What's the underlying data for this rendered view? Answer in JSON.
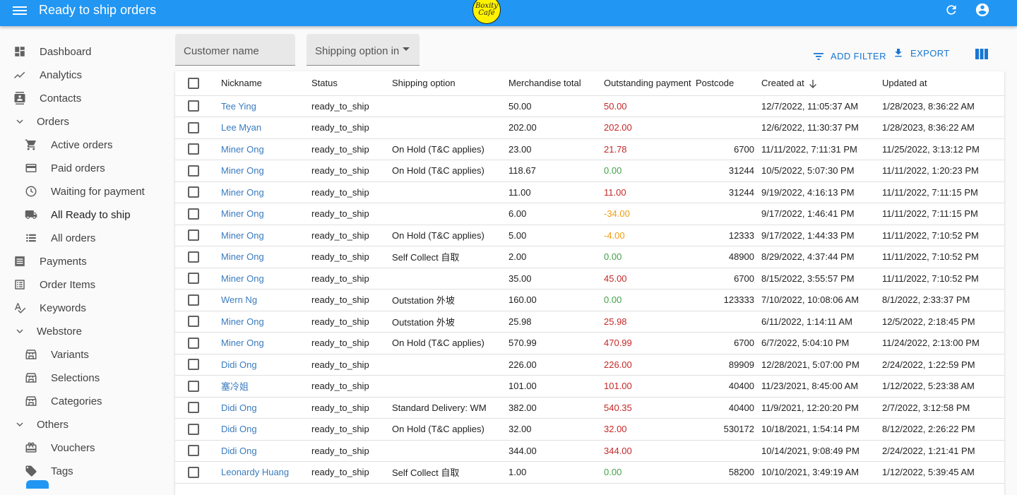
{
  "appbar": {
    "title": "Ready to ship orders",
    "logo_line1": "Boxity",
    "logo_line2": "Café"
  },
  "sidebar": {
    "items": [
      {
        "label": "Dashboard",
        "icon": "dashboard-icon"
      },
      {
        "label": "Analytics",
        "icon": "analytics-icon"
      },
      {
        "label": "Contacts",
        "icon": "contacts-icon"
      },
      {
        "label": "Orders",
        "icon": "chevron-down-icon"
      },
      {
        "label": "Active orders",
        "icon": "cart-icon"
      },
      {
        "label": "Paid orders",
        "icon": "credit-card-icon"
      },
      {
        "label": "Waiting for payment",
        "icon": "clock-icon"
      },
      {
        "label": "All Ready to ship",
        "icon": "truck-icon"
      },
      {
        "label": "All orders",
        "icon": "list-icon"
      },
      {
        "label": "Payments",
        "icon": "receipt-icon"
      },
      {
        "label": "Order Items",
        "icon": "list-alt-icon"
      },
      {
        "label": "Keywords",
        "icon": "spellcheck-icon"
      },
      {
        "label": "Webstore",
        "icon": "chevron-down-icon"
      },
      {
        "label": "Variants",
        "icon": "store-icon"
      },
      {
        "label": "Selections",
        "icon": "store-icon"
      },
      {
        "label": "Categories",
        "icon": "store-icon"
      },
      {
        "label": "Others",
        "icon": "chevron-down-icon"
      },
      {
        "label": "Vouchers",
        "icon": "gift-card-icon"
      },
      {
        "label": "Tags",
        "icon": "tag-icon"
      }
    ]
  },
  "filters": {
    "customer_name": "Customer name",
    "shipping_option": "Shipping option in"
  },
  "toolbar": {
    "add_filter": "ADD FILTER",
    "export": "EXPORT"
  },
  "table": {
    "columns": [
      "Nickname",
      "Status",
      "Shipping option",
      "Merchandise total",
      "Outstanding payment",
      "Postcode",
      "Created at",
      "Updated at"
    ],
    "rows": [
      {
        "nickname": "Tee Ying",
        "status": "ready_to_ship",
        "shipping": "",
        "total": "50.00",
        "outstanding": "50.00",
        "outstanding_color": "red",
        "postcode": "",
        "created": "12/7/2022, 11:05:37 AM",
        "updated": "1/28/2023, 8:36:22 AM"
      },
      {
        "nickname": "Lee Myan",
        "status": "ready_to_ship",
        "shipping": "",
        "total": "202.00",
        "outstanding": "202.00",
        "outstanding_color": "red",
        "postcode": "",
        "created": "12/6/2022, 11:30:37 PM",
        "updated": "1/28/2023, 8:36:22 AM"
      },
      {
        "nickname": "Miner Ong",
        "status": "ready_to_ship",
        "shipping": "On Hold (T&C applies)",
        "total": "23.00",
        "outstanding": "21.78",
        "outstanding_color": "red",
        "postcode": "6700",
        "created": "11/11/2022, 7:11:31 PM",
        "updated": "11/25/2022, 3:13:12 PM"
      },
      {
        "nickname": "Miner Ong",
        "status": "ready_to_ship",
        "shipping": "On Hold (T&C applies)",
        "total": "118.67",
        "outstanding": "0.00",
        "outstanding_color": "green",
        "postcode": "31244",
        "created": "10/5/2022, 5:07:30 PM",
        "updated": "11/11/2022, 1:20:23 PM"
      },
      {
        "nickname": "Miner Ong",
        "status": "ready_to_ship",
        "shipping": "",
        "total": "11.00",
        "outstanding": "11.00",
        "outstanding_color": "red",
        "postcode": "31244",
        "created": "9/19/2022, 4:16:13 PM",
        "updated": "11/11/2022, 7:11:15 PM"
      },
      {
        "nickname": "Miner Ong",
        "status": "ready_to_ship",
        "shipping": "",
        "total": "6.00",
        "outstanding": "-34.00",
        "outstanding_color": "orange",
        "postcode": "",
        "created": "9/17/2022, 1:46:41 PM",
        "updated": "11/11/2022, 7:11:15 PM"
      },
      {
        "nickname": "Miner Ong",
        "status": "ready_to_ship",
        "shipping": "On Hold (T&C applies)",
        "total": "5.00",
        "outstanding": "-4.00",
        "outstanding_color": "orange",
        "postcode": "12333",
        "created": "9/17/2022, 1:44:33 PM",
        "updated": "11/11/2022, 7:10:52 PM"
      },
      {
        "nickname": "Miner Ong",
        "status": "ready_to_ship",
        "shipping": "Self Collect 自取",
        "total": "2.00",
        "outstanding": "0.00",
        "outstanding_color": "green",
        "postcode": "48900",
        "created": "8/29/2022, 4:37:44 PM",
        "updated": "11/11/2022, 7:10:52 PM"
      },
      {
        "nickname": "Miner Ong",
        "status": "ready_to_ship",
        "shipping": "",
        "total": "35.00",
        "outstanding": "45.00",
        "outstanding_color": "red",
        "postcode": "6700",
        "created": "8/15/2022, 3:55:57 PM",
        "updated": "11/11/2022, 7:10:52 PM"
      },
      {
        "nickname": "Wern Ng",
        "status": "ready_to_ship",
        "shipping": "Outstation 外坡",
        "total": "160.00",
        "outstanding": "0.00",
        "outstanding_color": "green",
        "postcode": "123333",
        "created": "7/10/2022, 10:08:06 AM",
        "updated": "8/1/2022, 2:33:37 PM"
      },
      {
        "nickname": "Miner Ong",
        "status": "ready_to_ship",
        "shipping": "Outstation 外坡",
        "total": "25.98",
        "outstanding": "25.98",
        "outstanding_color": "red",
        "postcode": "",
        "created": "6/11/2022, 1:14:11 AM",
        "updated": "12/5/2022, 2:18:45 PM"
      },
      {
        "nickname": "Miner Ong",
        "status": "ready_to_ship",
        "shipping": "On Hold (T&C applies)",
        "total": "570.99",
        "outstanding": "470.99",
        "outstanding_color": "red",
        "postcode": "6700",
        "created": "6/7/2022, 5:04:10 PM",
        "updated": "11/24/2022, 2:13:00 PM"
      },
      {
        "nickname": "Didi Ong",
        "status": "ready_to_ship",
        "shipping": "",
        "total": "226.00",
        "outstanding": "226.00",
        "outstanding_color": "red",
        "postcode": "89909",
        "created": "12/28/2021, 5:07:00 PM",
        "updated": "2/24/2022, 1:22:59 PM"
      },
      {
        "nickname": "塞冷姐",
        "status": "ready_to_ship",
        "shipping": "",
        "total": "101.00",
        "outstanding": "101.00",
        "outstanding_color": "red",
        "postcode": "40400",
        "created": "11/23/2021, 8:45:00 AM",
        "updated": "1/12/2022, 5:23:38 AM"
      },
      {
        "nickname": "Didi Ong",
        "status": "ready_to_ship",
        "shipping": "Standard Delivery: WM",
        "total": "382.00",
        "outstanding": "540.35",
        "outstanding_color": "red",
        "postcode": "40400",
        "created": "11/9/2021, 12:20:20 PM",
        "updated": "2/7/2022, 3:12:58 PM"
      },
      {
        "nickname": "Didi Ong",
        "status": "ready_to_ship",
        "shipping": "On Hold (T&C applies)",
        "total": "32.00",
        "outstanding": "32.00",
        "outstanding_color": "red",
        "postcode": "530172",
        "created": "10/18/2021, 1:54:14 PM",
        "updated": "8/12/2022, 2:26:22 PM"
      },
      {
        "nickname": "Didi Ong",
        "status": "ready_to_ship",
        "shipping": "",
        "total": "344.00",
        "outstanding": "344.00",
        "outstanding_color": "red",
        "postcode": "",
        "created": "10/14/2021, 9:08:49 PM",
        "updated": "2/24/2022, 1:21:41 PM"
      },
      {
        "nickname": "Leonardy Huang",
        "status": "ready_to_ship",
        "shipping": "Self Collect 自取",
        "total": "1.00",
        "outstanding": "0.00",
        "outstanding_color": "green",
        "postcode": "58200",
        "created": "10/10/2021, 3:49:19 AM",
        "updated": "1/12/2022, 5:39:45 AM"
      }
    ]
  },
  "colors": {
    "appbar": "#2196f3",
    "link": "#3a7bbf",
    "red": "#c62828",
    "green": "#43a047",
    "orange": "#f39c12"
  }
}
